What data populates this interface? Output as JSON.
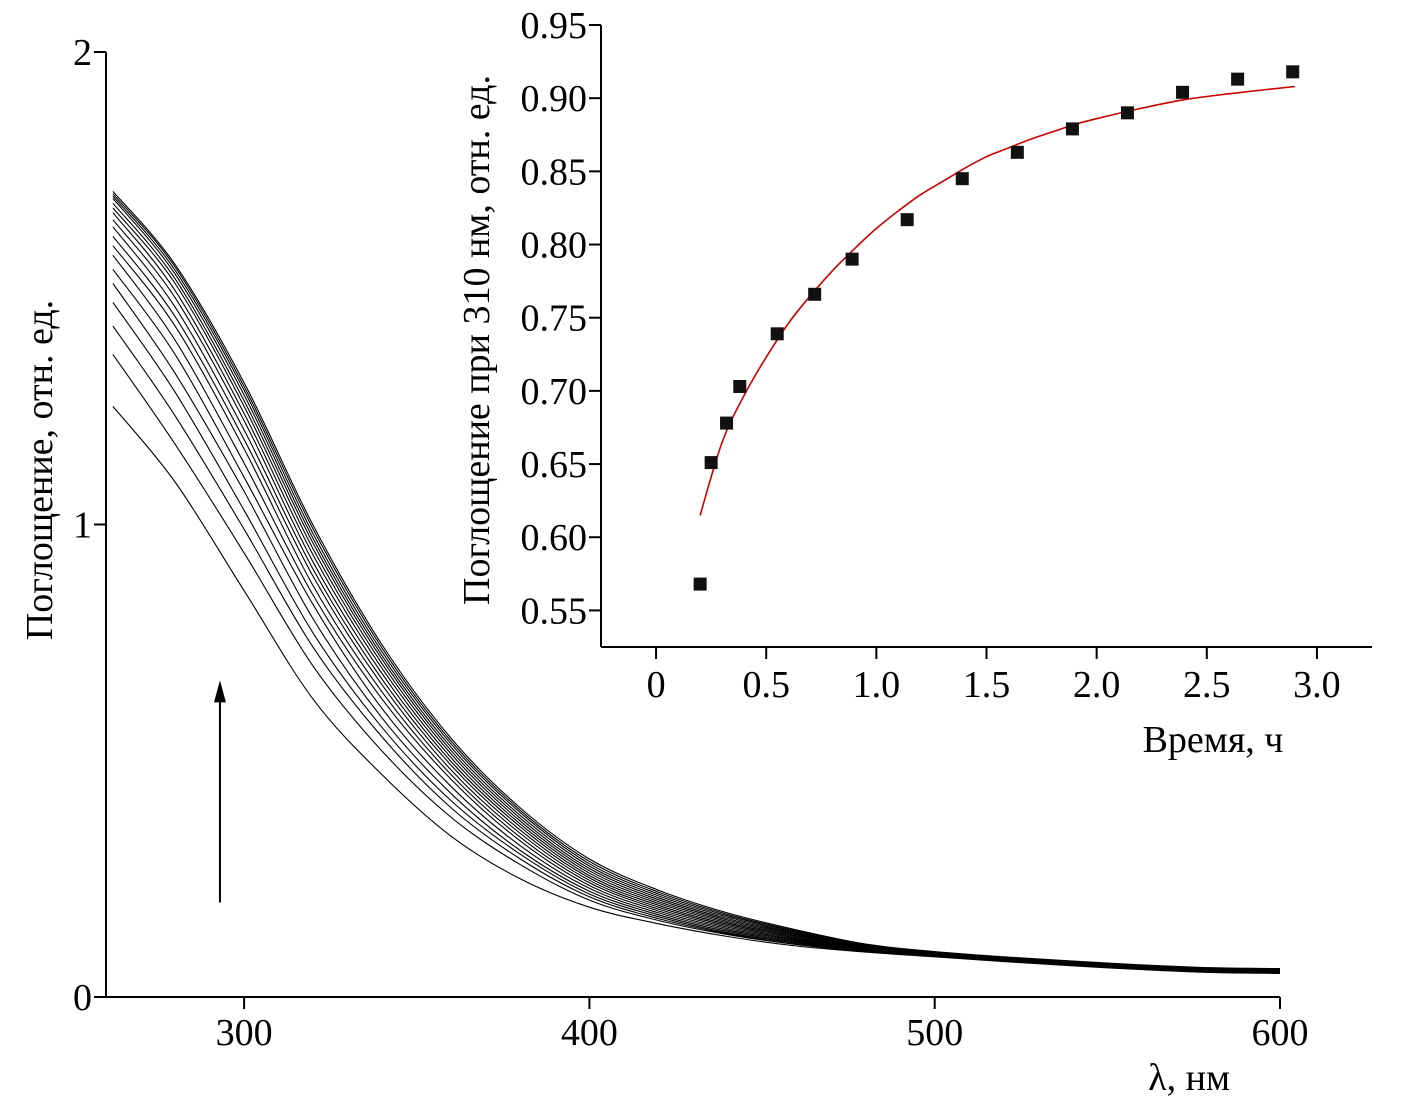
{
  "chart_data": [
    {
      "id": "main",
      "type": "line",
      "xlabel": "λ, нм",
      "ylabel": "Поглощение, отн. ед.",
      "xlim": [
        260,
        600
      ],
      "ylim": [
        0,
        2
      ],
      "x_ticks": [
        300,
        400,
        500,
        600
      ],
      "y_ticks": [
        0,
        1,
        2
      ],
      "x_tick_labels": [
        "300",
        "400",
        "500",
        "600"
      ],
      "y_tick_labels": [
        "0",
        "1",
        "2"
      ],
      "grid": false,
      "annotation": {
        "type": "arrow",
        "direction": "up",
        "x": 293,
        "y_from": 0.2,
        "y_to": 0.67
      },
      "x": [
        262,
        280,
        300,
        320,
        340,
        360,
        380,
        400,
        420,
        440,
        460,
        480,
        500,
        520,
        540,
        560,
        580,
        600
      ],
      "series": [
        {
          "values": [
            1.25,
            1.09,
            0.86,
            0.63,
            0.47,
            0.34,
            0.25,
            0.19,
            0.155,
            0.128,
            0.108,
            0.095,
            0.085,
            0.075,
            0.066,
            0.058,
            0.052,
            0.05
          ]
        },
        {
          "values": [
            1.36,
            1.17,
            0.94,
            0.7,
            0.52,
            0.38,
            0.28,
            0.205,
            0.162,
            0.132,
            0.111,
            0.096,
            0.086,
            0.076,
            0.067,
            0.059,
            0.053,
            0.051
          ]
        },
        {
          "values": [
            1.42,
            1.23,
            0.99,
            0.74,
            0.55,
            0.4,
            0.292,
            0.212,
            0.166,
            0.134,
            0.112,
            0.097,
            0.087,
            0.077,
            0.068,
            0.06,
            0.054,
            0.052
          ]
        },
        {
          "values": [
            1.47,
            1.28,
            1.03,
            0.77,
            0.57,
            0.415,
            0.302,
            0.218,
            0.17,
            0.136,
            0.114,
            0.098,
            0.088,
            0.078,
            0.069,
            0.061,
            0.055,
            0.053
          ]
        },
        {
          "values": [
            1.51,
            1.32,
            1.07,
            0.8,
            0.59,
            0.43,
            0.31,
            0.224,
            0.174,
            0.139,
            0.116,
            0.099,
            0.088,
            0.078,
            0.069,
            0.061,
            0.055,
            0.053
          ]
        },
        {
          "values": [
            1.54,
            1.36,
            1.1,
            0.83,
            0.61,
            0.445,
            0.32,
            0.23,
            0.178,
            0.142,
            0.118,
            0.1,
            0.089,
            0.079,
            0.07,
            0.062,
            0.056,
            0.054
          ]
        },
        {
          "values": [
            1.57,
            1.39,
            1.13,
            0.85,
            0.63,
            0.46,
            0.33,
            0.236,
            0.182,
            0.145,
            0.12,
            0.101,
            0.09,
            0.079,
            0.07,
            0.062,
            0.056,
            0.054
          ]
        },
        {
          "values": [
            1.59,
            1.42,
            1.16,
            0.87,
            0.645,
            0.47,
            0.338,
            0.242,
            0.186,
            0.148,
            0.122,
            0.102,
            0.09,
            0.08,
            0.071,
            0.063,
            0.057,
            0.055
          ]
        },
        {
          "values": [
            1.61,
            1.44,
            1.18,
            0.89,
            0.66,
            0.48,
            0.346,
            0.247,
            0.19,
            0.151,
            0.124,
            0.103,
            0.091,
            0.08,
            0.071,
            0.063,
            0.057,
            0.055
          ]
        },
        {
          "values": [
            1.63,
            1.46,
            1.2,
            0.905,
            0.672,
            0.49,
            0.353,
            0.252,
            0.194,
            0.154,
            0.126,
            0.104,
            0.092,
            0.081,
            0.072,
            0.064,
            0.058,
            0.056
          ]
        },
        {
          "values": [
            1.645,
            1.48,
            1.22,
            0.92,
            0.684,
            0.498,
            0.36,
            0.257,
            0.198,
            0.157,
            0.128,
            0.105,
            0.092,
            0.081,
            0.072,
            0.064,
            0.058,
            0.056
          ]
        },
        {
          "values": [
            1.66,
            1.495,
            1.235,
            0.935,
            0.695,
            0.506,
            0.366,
            0.262,
            0.202,
            0.16,
            0.13,
            0.106,
            0.093,
            0.082,
            0.073,
            0.065,
            0.059,
            0.057
          ]
        },
        {
          "values": [
            1.67,
            1.51,
            1.25,
            0.948,
            0.705,
            0.514,
            0.372,
            0.267,
            0.206,
            0.163,
            0.132,
            0.107,
            0.093,
            0.082,
            0.073,
            0.065,
            0.059,
            0.057
          ]
        },
        {
          "values": [
            1.68,
            1.52,
            1.262,
            0.96,
            0.714,
            0.521,
            0.378,
            0.272,
            0.21,
            0.166,
            0.134,
            0.108,
            0.094,
            0.083,
            0.074,
            0.066,
            0.06,
            0.058
          ]
        },
        {
          "values": [
            1.69,
            1.53,
            1.274,
            0.97,
            0.722,
            0.528,
            0.384,
            0.277,
            0.214,
            0.169,
            0.136,
            0.109,
            0.094,
            0.083,
            0.074,
            0.066,
            0.06,
            0.058
          ]
        },
        {
          "values": [
            1.695,
            1.538,
            1.284,
            0.98,
            0.73,
            0.535,
            0.39,
            0.282,
            0.218,
            0.172,
            0.138,
            0.11,
            0.095,
            0.084,
            0.075,
            0.067,
            0.061,
            0.059
          ]
        },
        {
          "values": [
            1.7,
            1.545,
            1.292,
            0.99,
            0.738,
            0.541,
            0.395,
            0.287,
            0.222,
            0.175,
            0.14,
            0.111,
            0.095,
            0.084,
            0.075,
            0.067,
            0.061,
            0.059
          ]
        },
        {
          "values": [
            1.705,
            1.55,
            1.3,
            0.998,
            0.745,
            0.547,
            0.4,
            0.292,
            0.226,
            0.178,
            0.142,
            0.112,
            0.096,
            0.085,
            0.076,
            0.068,
            0.062,
            0.06
          ]
        }
      ]
    },
    {
      "id": "inset",
      "type": "scatter",
      "xlabel": "Время, ч",
      "ylabel": "Поглощение при 310 нм, отн. ед.",
      "xlim": [
        -0.25,
        3.25
      ],
      "ylim": [
        0.525,
        0.95
      ],
      "x_ticks": [
        0,
        0.5,
        1.0,
        1.5,
        2.0,
        2.5,
        3.0
      ],
      "y_ticks": [
        0.55,
        0.6,
        0.65,
        0.7,
        0.75,
        0.8,
        0.85,
        0.9,
        0.95
      ],
      "x_tick_labels": [
        "0",
        "0.5",
        "1.0",
        "1.5",
        "2.0",
        "2.5",
        "3.0"
      ],
      "y_tick_labels": [
        "0.55",
        "0.60",
        "0.65",
        "0.70",
        "0.75",
        "0.80",
        "0.85",
        "0.90",
        "0.95"
      ],
      "grid": false,
      "points": {
        "x": [
          0.2,
          0.25,
          0.32,
          0.38,
          0.55,
          0.72,
          0.89,
          1.14,
          1.39,
          1.64,
          1.89,
          2.14,
          2.39,
          2.64,
          2.89
        ],
        "y": [
          0.568,
          0.651,
          0.678,
          0.703,
          0.739,
          0.766,
          0.79,
          0.817,
          0.845,
          0.863,
          0.879,
          0.89,
          0.904,
          0.913,
          0.918
        ]
      },
      "fit": {
        "color": "#cc0000",
        "x": [
          0.2,
          0.3,
          0.4,
          0.5,
          0.6,
          0.7,
          0.8,
          0.9,
          1.0,
          1.1,
          1.2,
          1.3,
          1.4,
          1.5,
          1.6,
          1.7,
          1.8,
          1.9,
          2.0,
          2.2,
          2.4,
          2.6,
          2.9
        ],
        "y": [
          0.615,
          0.665,
          0.697,
          0.723,
          0.746,
          0.765,
          0.782,
          0.797,
          0.811,
          0.823,
          0.834,
          0.843,
          0.852,
          0.86,
          0.866,
          0.872,
          0.877,
          0.882,
          0.886,
          0.893,
          0.899,
          0.903,
          0.908
        ]
      }
    }
  ]
}
